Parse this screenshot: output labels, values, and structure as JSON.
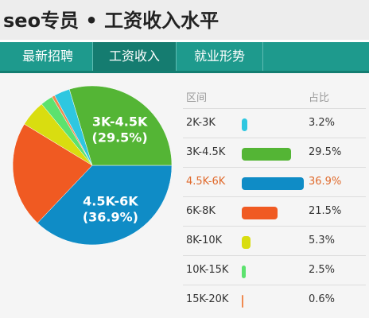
{
  "header": {
    "title": "seo专员 • 工资收入水平"
  },
  "tabs": [
    {
      "label": "最新招聘",
      "active": false
    },
    {
      "label": "工资收入",
      "active": true
    },
    {
      "label": "就业形势",
      "active": false
    }
  ],
  "table": {
    "col_range": "区间",
    "col_pct": "占比"
  },
  "chart_data": {
    "type": "pie",
    "categories": [
      "2K-3K",
      "3K-4.5K",
      "4.5K-6K",
      "6K-8K",
      "8K-10K",
      "10K-15K",
      "15K-20K"
    ],
    "values": [
      3.2,
      29.5,
      36.9,
      21.5,
      5.3,
      2.5,
      0.6
    ],
    "value_labels": [
      "3.2%",
      "29.5%",
      "36.9%",
      "21.5%",
      "5.3%",
      "2.5%",
      "0.6%"
    ],
    "colors": [
      "#2ec7e0",
      "#54b535",
      "#0f8cc6",
      "#f05a22",
      "#d9dd10",
      "#5ce26e",
      "#f08a50"
    ],
    "highlighted": "4.5K-6K",
    "pie_labels": [
      {
        "category": "4.5K-6K",
        "range": "4.5K-6K",
        "pct": "(36.9%)"
      },
      {
        "category": "3K-4.5K",
        "range": "3K-4.5K",
        "pct": "(29.5%)"
      }
    ]
  }
}
